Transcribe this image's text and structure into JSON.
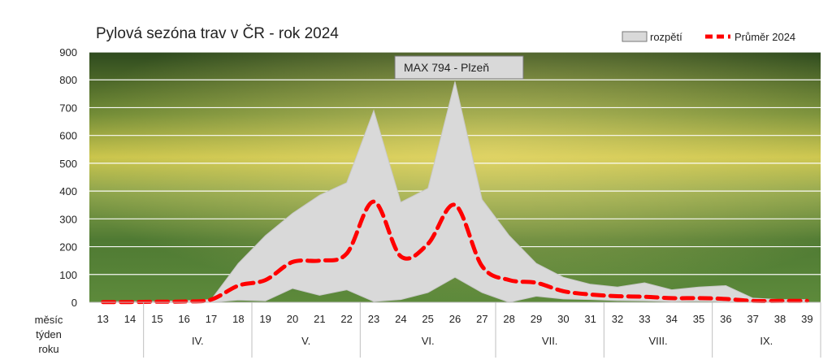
{
  "chart_data": {
    "type": "area",
    "title": "Pylová sezóna trav v ČR - rok 2024",
    "annotation": "MAX 794 - Plzeň",
    "legend": {
      "range_label": "rozpětí",
      "mean_label": "Průměr 2024",
      "position": "top-right"
    },
    "xlabel_lines": [
      "měsíc",
      "týden",
      "roku"
    ],
    "weeks": [
      13,
      14,
      15,
      16,
      17,
      18,
      19,
      20,
      21,
      22,
      23,
      24,
      25,
      26,
      27,
      28,
      29,
      30,
      31,
      32,
      33,
      34,
      35,
      36,
      37,
      38,
      39
    ],
    "months": [
      {
        "label": "IV.",
        "from": 15,
        "to": 18
      },
      {
        "label": "V.",
        "from": 19,
        "to": 22
      },
      {
        "label": "VI.",
        "from": 23,
        "to": 27
      },
      {
        "label": "VII.",
        "from": 28,
        "to": 31
      },
      {
        "label": "VIII.",
        "from": 32,
        "to": 35
      },
      {
        "label": "IX.",
        "from": 36,
        "to": 39
      }
    ],
    "ylim": [
      0,
      900
    ],
    "yticks": [
      0,
      100,
      200,
      300,
      400,
      500,
      600,
      700,
      800,
      900
    ],
    "grid": true,
    "series": [
      {
        "name": "rozpětí",
        "kind": "range",
        "max": [
          2,
          2,
          3,
          5,
          10,
          140,
          240,
          320,
          385,
          430,
          690,
          360,
          410,
          794,
          370,
          240,
          140,
          90,
          65,
          55,
          70,
          45,
          55,
          60,
          15,
          10,
          10
        ],
        "min": [
          0,
          0,
          0,
          0,
          0,
          8,
          5,
          50,
          25,
          45,
          3,
          10,
          35,
          90,
          35,
          0,
          22,
          12,
          10,
          6,
          5,
          3,
          4,
          3,
          0,
          0,
          0
        ]
      },
      {
        "name": "Průměr 2024",
        "kind": "line",
        "color": "#ff0000",
        "values": [
          1,
          1,
          2,
          3,
          10,
          60,
          80,
          145,
          150,
          175,
          362,
          165,
          210,
          350,
          130,
          80,
          70,
          40,
          28,
          22,
          20,
          15,
          15,
          12,
          5,
          5,
          5
        ]
      }
    ],
    "colors": {
      "range": "#d9d9d9",
      "mean": "#ff0000",
      "grid": "#ffffff"
    }
  }
}
